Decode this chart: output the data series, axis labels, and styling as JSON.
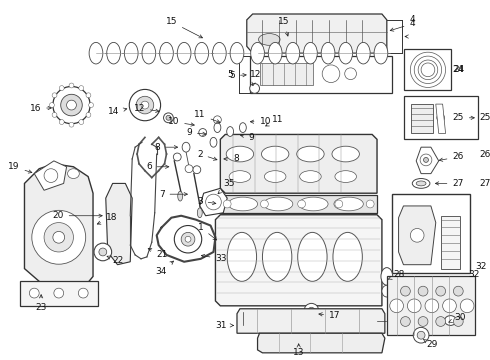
{
  "bg_color": "#ffffff",
  "fig_width": 4.9,
  "fig_height": 3.6,
  "dpi": 100,
  "lc": "#222222",
  "tc": "#111111",
  "fs": 6.5
}
